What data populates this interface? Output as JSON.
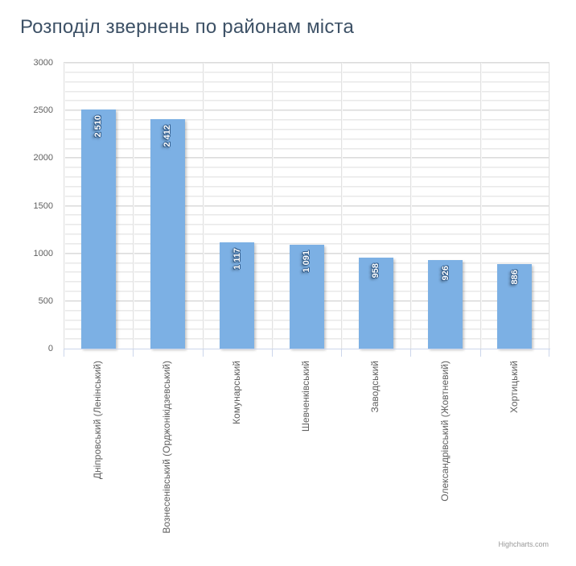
{
  "chart_data": {
    "type": "bar",
    "title": "Розподіл звернень по районам міста",
    "categories": [
      "Дніпровський (Ленінський)",
      "Вознесенівський (Орджонікідзевський)",
      "Комунарський",
      "Шевченківський",
      "Заводський",
      "Олександрівський (Жовтневий)",
      "Хортицький"
    ],
    "values": [
      2510,
      2412,
      1117,
      1091,
      958,
      926,
      886
    ],
    "value_labels": [
      "2 510",
      "2 412",
      "1 117",
      "1 091",
      "958",
      "926",
      "886"
    ],
    "xlabel": "",
    "ylabel": "",
    "ylim": [
      0,
      3000
    ],
    "yticks": [
      0,
      500,
      1000,
      1500,
      2000,
      2500,
      3000
    ],
    "minor_tick_step": 100,
    "grid": "on",
    "legend": "none",
    "label_rotation_deg": -90,
    "colors": {
      "bar": "#7cb0e4",
      "value_label_text": "#ffffff",
      "value_label_outline": "#35608f",
      "axis_line": "#ccd6eb",
      "grid_major": "#d5d5d5",
      "grid_minor": "#e4e4e4",
      "axis_text": "#606060",
      "title_text": "#3d5166",
      "credits_text": "#999999"
    }
  },
  "credits": {
    "label": "Highcharts.com"
  }
}
